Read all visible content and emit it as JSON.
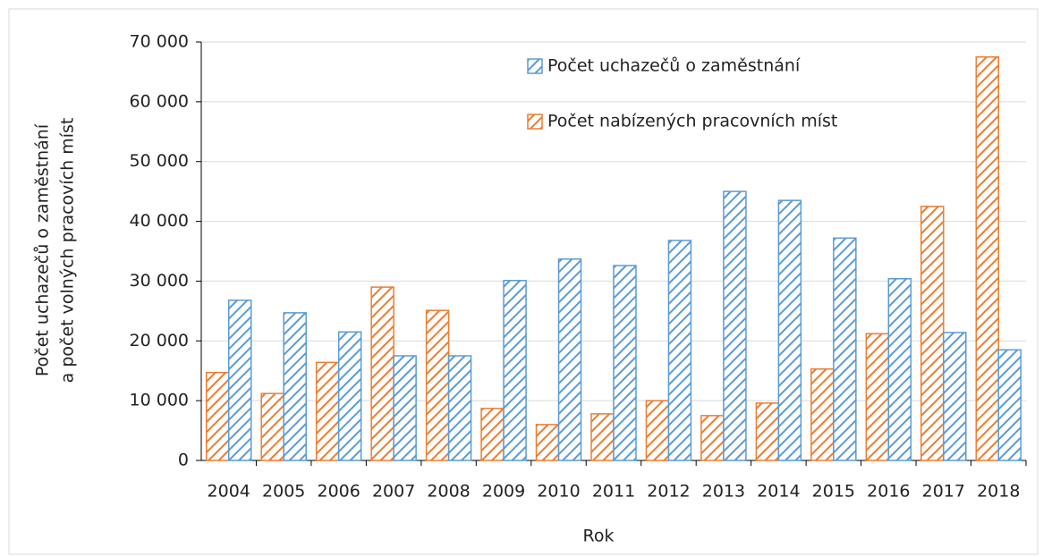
{
  "chart_data": {
    "type": "bar",
    "xlabel": "Rok",
    "ylabel": [
      "Počet uchazečů o zaměstnání",
      "a počet  volných pracovích míst"
    ],
    "categories": [
      "2004",
      "2005",
      "2006",
      "2007",
      "2008",
      "2009",
      "2010",
      "2011",
      "2012",
      "2013",
      "2014",
      "2015",
      "2016",
      "2017",
      "2018"
    ],
    "series": [
      {
        "name": "Počet nabízených pracovních míst",
        "color": "#ed7d31",
        "values": [
          14700,
          11200,
          16400,
          29000,
          25100,
          8700,
          6000,
          7800,
          10000,
          7500,
          9600,
          15300,
          21200,
          42500,
          67500
        ]
      },
      {
        "name": "Počet uchazečů o zaměstnání",
        "color": "#5b9bd5",
        "values": [
          26800,
          24700,
          21500,
          17500,
          17500,
          30100,
          33700,
          32600,
          36800,
          45000,
          43500,
          37200,
          30400,
          21400,
          18500
        ]
      }
    ],
    "legend_order": [
      1,
      0
    ],
    "legend": "upper center",
    "grid": true,
    "ylim": [
      0,
      70000
    ],
    "yticks": [
      0,
      {
        "value": 10000,
        "label": "10 000"
      },
      {
        "value": 20000,
        "label": "20 000"
      },
      {
        "value": 30000,
        "label": "30 000"
      },
      {
        "value": 40000,
        "label": "40 000"
      },
      {
        "value": 50000,
        "label": "50 000"
      },
      {
        "value": 60000,
        "label": "60 000"
      },
      {
        "value": 70000,
        "label": "70 000"
      }
    ]
  }
}
